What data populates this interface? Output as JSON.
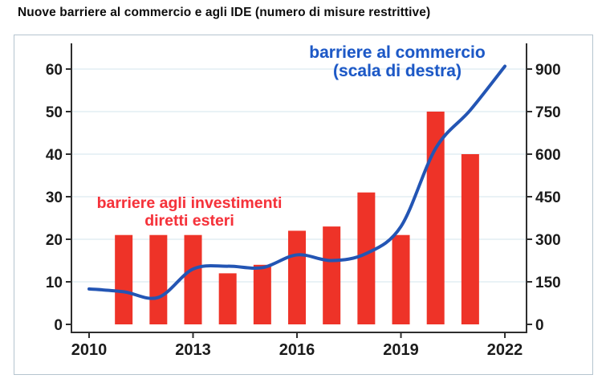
{
  "title": "Nuove barriere al commercio e agli IDE (numero di misure restrittive)",
  "colors": {
    "bar_red": "#ee3328",
    "line_blue": "#2355b4",
    "red_label": "#f5323a",
    "blue_label": "#1d58c6",
    "grid": "#e2edf4",
    "axis": "#2e2e2e",
    "tick_text": "#1b1b1b",
    "panel_border": "#b5c4cf"
  },
  "chart_data": {
    "type": "bar+line",
    "title": "Nuove barriere al commercio e agli IDE (numero di misure restrittive)",
    "grid": true,
    "x_axis": {
      "ticks": [
        2010,
        2013,
        2016,
        2019,
        2022
      ],
      "range": [
        2009.5,
        2022.6
      ]
    },
    "left_axis": {
      "label": "",
      "ticks": [
        0,
        10,
        20,
        30,
        40,
        50,
        60
      ],
      "range": [
        0,
        66
      ]
    },
    "right_axis": {
      "label": "",
      "ticks": [
        0,
        150,
        300,
        450,
        600,
        750,
        900
      ],
      "range": [
        0,
        990
      ]
    },
    "series": [
      {
        "name": "barriere agli investimenti diretti esteri",
        "type": "bar",
        "axis": "left",
        "x": [
          2011,
          2012,
          2013,
          2014,
          2015,
          2016,
          2017,
          2018,
          2019,
          2020,
          2021
        ],
        "values": [
          21,
          21,
          21,
          12,
          14,
          22,
          23,
          31,
          21,
          50,
          40
        ]
      },
      {
        "name": "barriere al commercio (scala di destra)",
        "type": "line",
        "axis": "right",
        "x": [
          2010,
          2011,
          2012,
          2013,
          2014,
          2015,
          2016,
          2017,
          2018,
          2019,
          2020,
          2021,
          2022
        ],
        "values": [
          125,
          115,
          95,
          195,
          205,
          200,
          245,
          225,
          250,
          345,
          620,
          755,
          910
        ]
      }
    ],
    "annotations": [
      {
        "series": "trade",
        "line1": "barriere al commercio",
        "line2": "(scala di destra)"
      },
      {
        "series": "fdi",
        "line1": "barriere agli investimenti",
        "line2": "diretti esteri"
      }
    ]
  },
  "annotation_trade": {
    "line1": "barriere al commercio",
    "line2": "(scala di destra)"
  },
  "annotation_fdi": {
    "line1": "barriere agli investimenti",
    "line2": "diretti esteri"
  }
}
